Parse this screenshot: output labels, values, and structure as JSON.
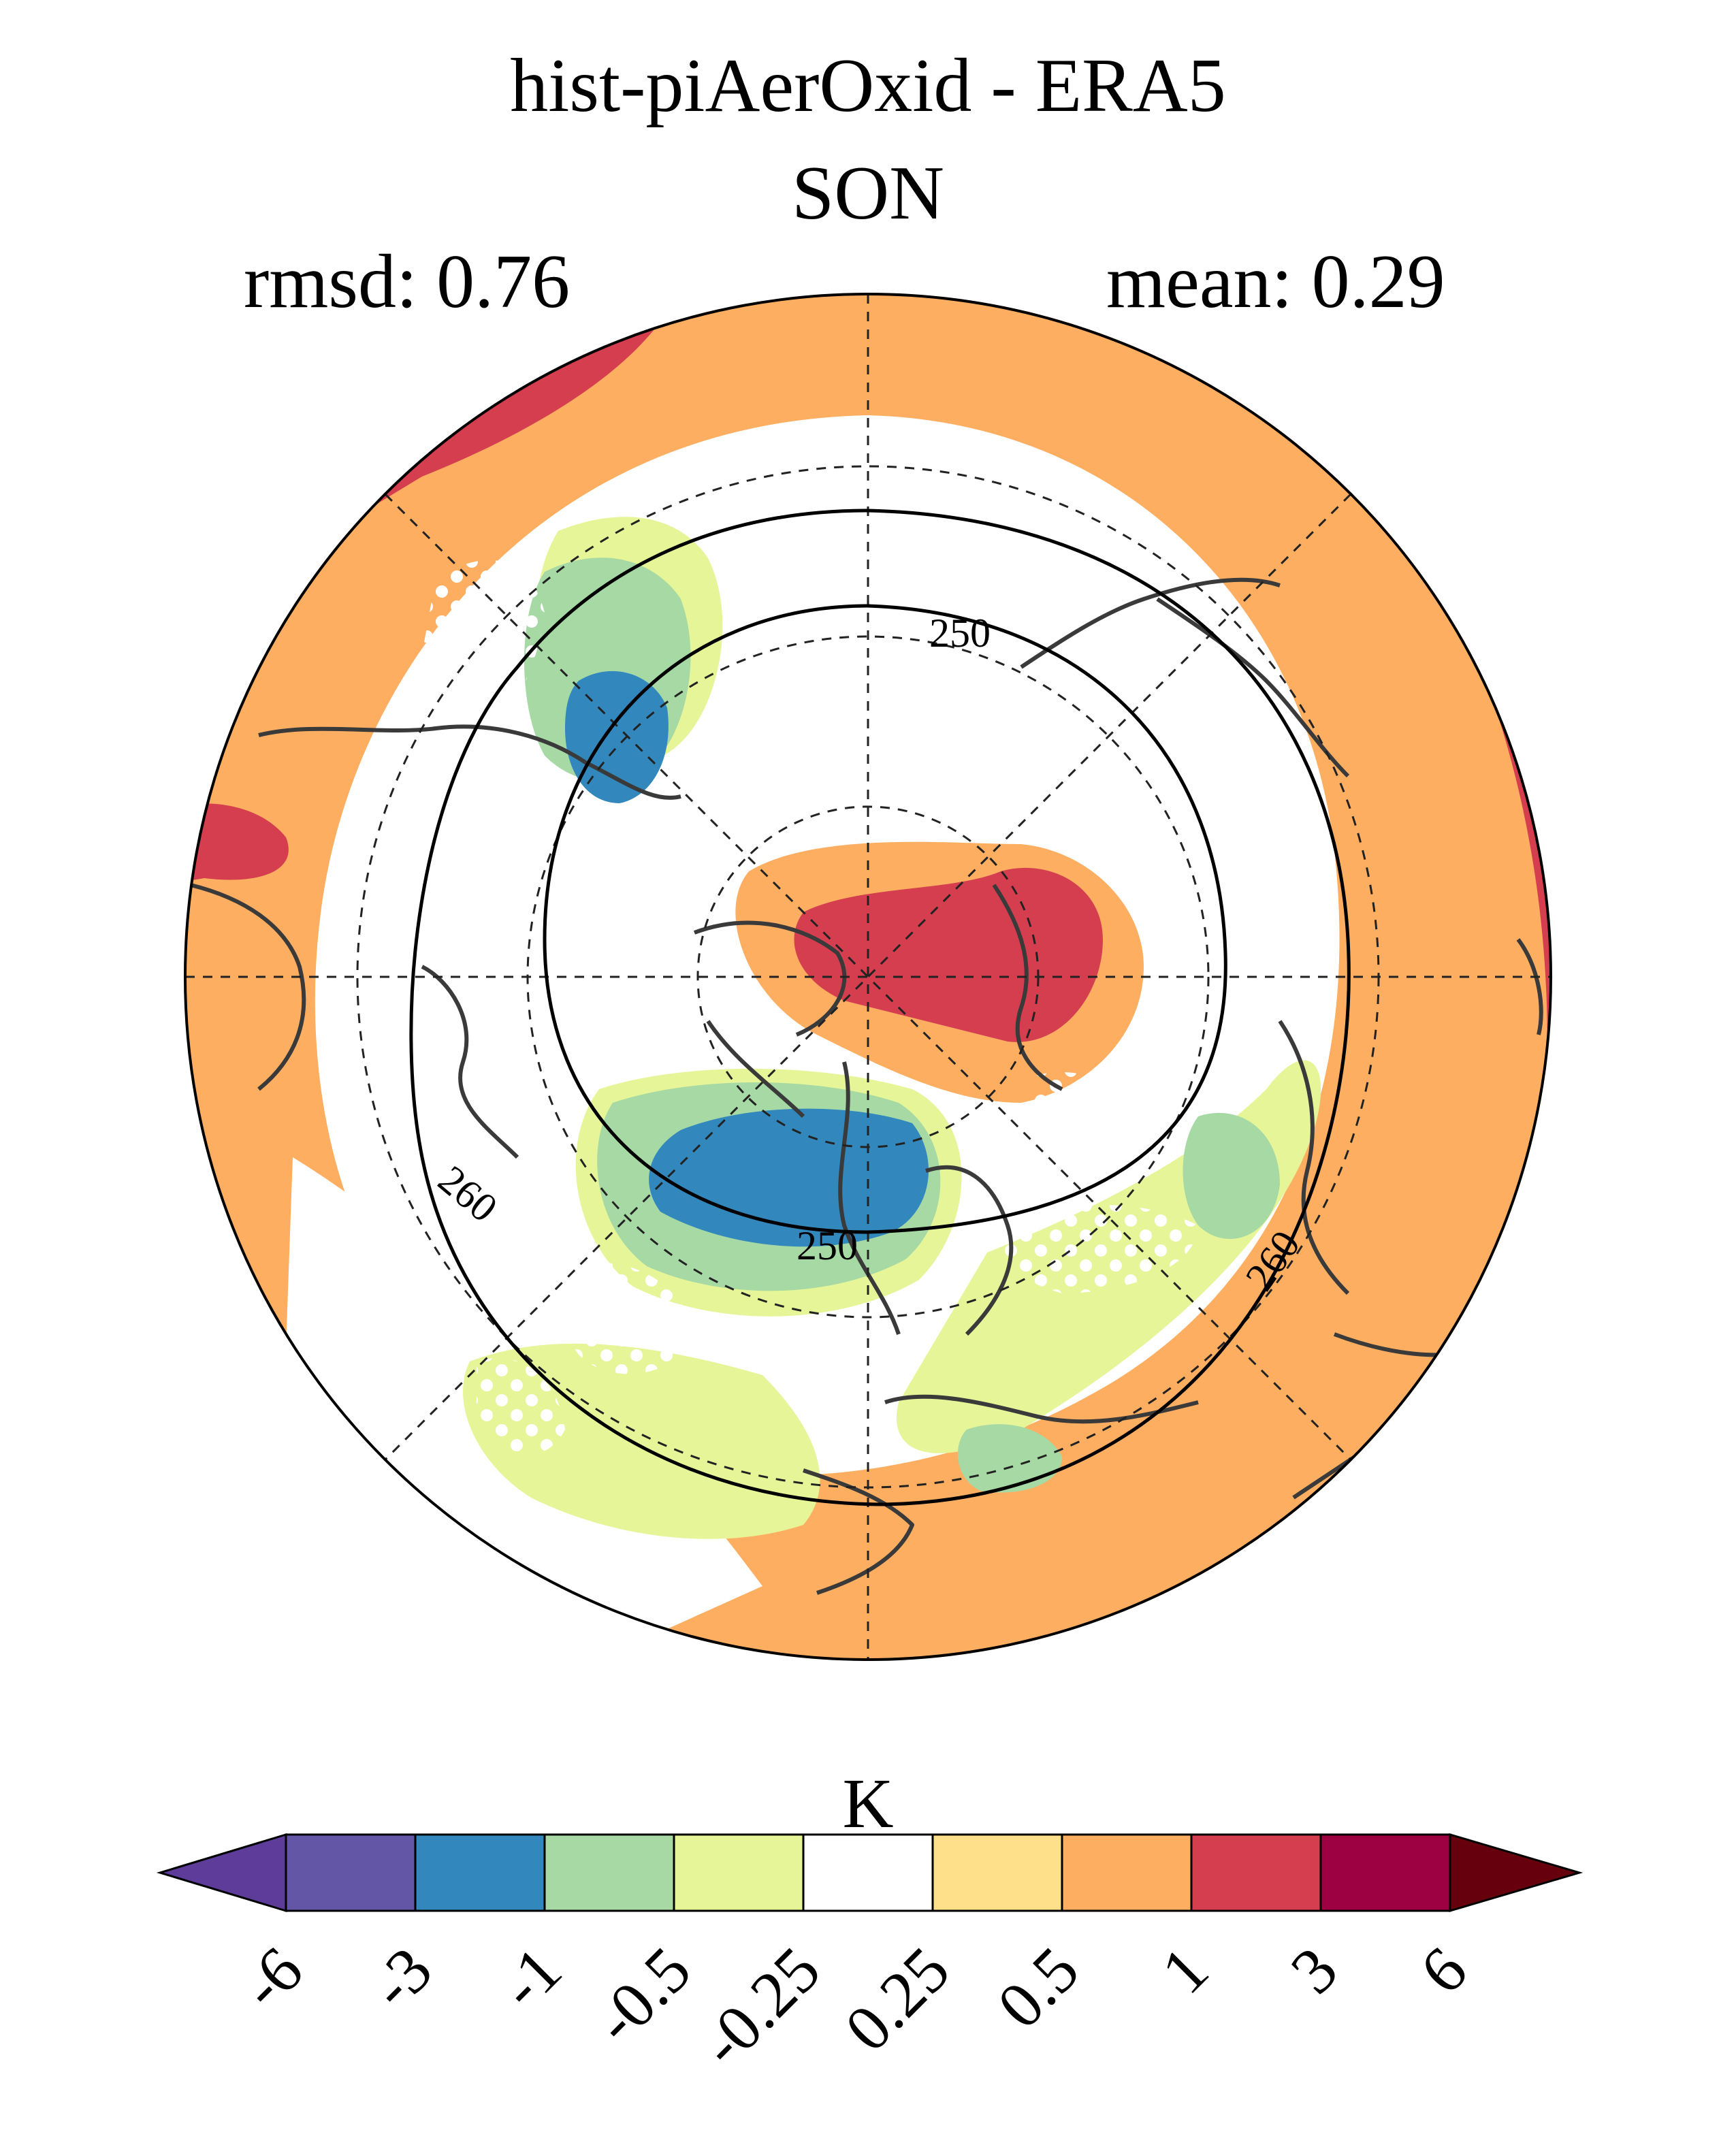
{
  "title": "hist-piAerOxid - ERA5",
  "season": "SON",
  "stats": {
    "rmsd": "rmsd: 0.76",
    "mean": "mean: 0.29"
  },
  "map": {
    "projection": "north-polar-stereographic",
    "contour_labels": [
      "250",
      "250",
      "260",
      "260"
    ]
  },
  "colorbar": {
    "units": "K",
    "tick_labels": [
      "-6",
      "-3",
      "-1",
      "-0.5",
      "-0.25",
      "0.25",
      "0.5",
      "1",
      "3",
      "6"
    ],
    "colors": [
      "#5e3c99",
      "#6356a6",
      "#3288bd",
      "#a6d9a4",
      "#e6f598",
      "#ffffff",
      "#fee08b",
      "#fdae61",
      "#d53e4f",
      "#9e0142",
      "#67000d"
    ]
  }
}
